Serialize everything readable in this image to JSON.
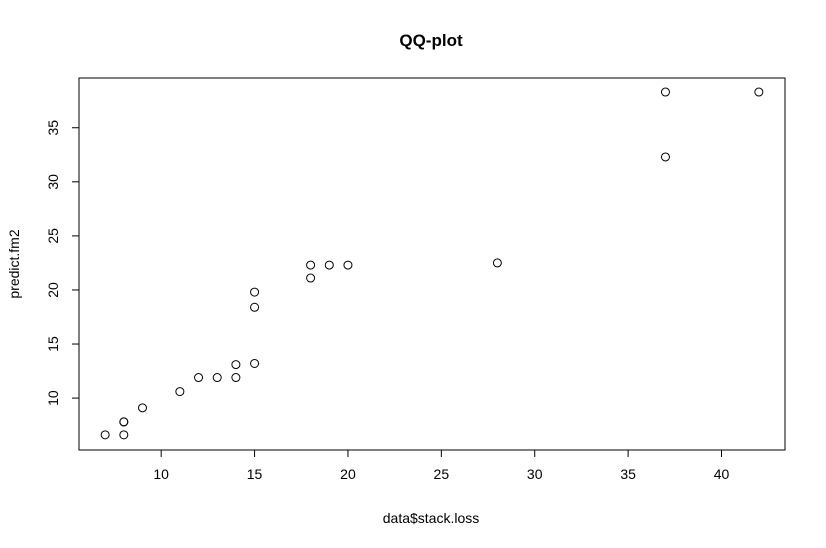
{
  "chart_data": {
    "type": "scatter",
    "title": "QQ-plot",
    "xlabel": "data$stack.loss",
    "ylabel": "predict.fm2",
    "xlim": [
      5.6,
      43.4
    ],
    "ylim": [
      5.2,
      39.6
    ],
    "x_ticks": [
      10,
      15,
      20,
      25,
      30,
      35,
      40
    ],
    "y_ticks": [
      10,
      15,
      20,
      25,
      30,
      35
    ],
    "grid": false,
    "legend": "none",
    "marker": "open-circle",
    "colors": {
      "points": "#000000",
      "axes": "#000000",
      "background": "#ffffff"
    },
    "points": [
      {
        "x": 42,
        "y": 38.3
      },
      {
        "x": 37,
        "y": 38.3
      },
      {
        "x": 37,
        "y": 32.3
      },
      {
        "x": 28,
        "y": 22.5
      },
      {
        "x": 18,
        "y": 22.3
      },
      {
        "x": 18,
        "y": 21.1
      },
      {
        "x": 19,
        "y": 22.3
      },
      {
        "x": 20,
        "y": 22.3
      },
      {
        "x": 15,
        "y": 19.8
      },
      {
        "x": 14,
        "y": 13.1
      },
      {
        "x": 14,
        "y": 11.9
      },
      {
        "x": 13,
        "y": 11.9
      },
      {
        "x": 11,
        "y": 10.6
      },
      {
        "x": 12,
        "y": 11.9
      },
      {
        "x": 8,
        "y": 7.8
      },
      {
        "x": 7,
        "y": 6.6
      },
      {
        "x": 8,
        "y": 6.6
      },
      {
        "x": 8,
        "y": 7.8
      },
      {
        "x": 9,
        "y": 9.1
      },
      {
        "x": 15,
        "y": 13.2
      },
      {
        "x": 15,
        "y": 18.4
      }
    ]
  }
}
